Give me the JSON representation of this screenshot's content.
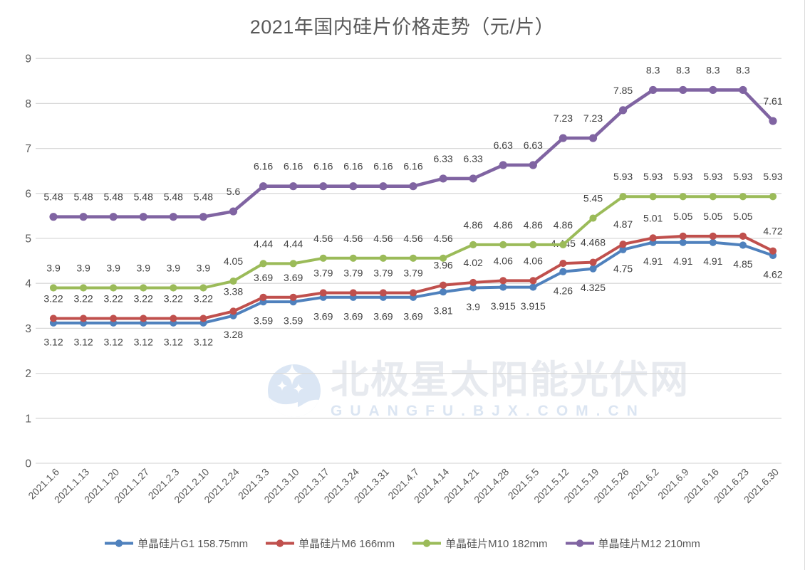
{
  "title": "2021年国内硅片价格走势（元/片）",
  "watermark": {
    "text": "北极星太阳能光伏网",
    "subtext": "GUANGFU.BJX.COM.CN",
    "logo": "star-crescent-logo",
    "main_color": "#e7eaef",
    "sub_color": "#dbe5f2",
    "logo_color": "#dbe6f4"
  },
  "axis_colors": {
    "tick_text": "#595959",
    "gridline": "#d9d9d9",
    "data_label": "#3f3f3f"
  },
  "chart_data": {
    "type": "line",
    "title": "2021年国内硅片价格走势（元/片）",
    "xlabel": "",
    "ylabel": "",
    "ylim": [
      0,
      9
    ],
    "ytick_step": 1,
    "grid": true,
    "legend_position": "bottom",
    "markers": "circle",
    "categories": [
      "2021.1.6",
      "2021.1.13",
      "2021.1.20",
      "2021.1.27",
      "2021.2.3",
      "2021.2.10",
      "2021.2.24",
      "2021.3.3",
      "2021.3.10",
      "2021.3.17",
      "2021.3.24",
      "2021.3.31",
      "2021.4.7",
      "2021.4.14",
      "2021.4.21",
      "2021.4.28",
      "2021.5.5",
      "2021.5.12",
      "2021.5.19",
      "2021.5.26",
      "2021.6.2",
      "2021.6.9",
      "2021.6.16",
      "2021.6.23",
      "2021.6.30"
    ],
    "series": [
      {
        "name": "单晶硅片G1 158.75mm",
        "color": "#4F81BD",
        "label_position": "below",
        "values": [
          3.12,
          3.12,
          3.12,
          3.12,
          3.12,
          3.12,
          3.28,
          3.59,
          3.59,
          3.69,
          3.69,
          3.69,
          3.69,
          3.81,
          3.9,
          3.915,
          3.915,
          4.26,
          4.325,
          4.75,
          4.91,
          4.91,
          4.91,
          4.85,
          4.62
        ]
      },
      {
        "name": "单晶硅片M6 166mm",
        "color": "#C0504D",
        "label_position": "above",
        "values": [
          3.22,
          3.22,
          3.22,
          3.22,
          3.22,
          3.22,
          3.38,
          3.69,
          3.69,
          3.79,
          3.79,
          3.79,
          3.79,
          3.96,
          4.02,
          4.06,
          4.06,
          4.445,
          4.468,
          4.87,
          5.01,
          5.05,
          5.05,
          5.05,
          4.72
        ]
      },
      {
        "name": "单晶硅片M10 182mm",
        "color": "#9BBB59",
        "label_position": "above",
        "values": [
          3.9,
          3.9,
          3.9,
          3.9,
          3.9,
          3.9,
          4.05,
          4.44,
          4.44,
          4.56,
          4.56,
          4.56,
          4.56,
          4.56,
          4.86,
          4.86,
          4.86,
          4.86,
          5.45,
          5.93,
          5.93,
          5.93,
          5.93,
          5.93,
          5.93
        ]
      },
      {
        "name": "单晶硅片M12 210mm",
        "color": "#8064A2",
        "label_position": "above",
        "values": [
          5.48,
          5.48,
          5.48,
          5.48,
          5.48,
          5.48,
          5.6,
          6.16,
          6.16,
          6.16,
          6.16,
          6.16,
          6.16,
          6.33,
          6.33,
          6.63,
          6.63,
          7.23,
          7.23,
          7.85,
          8.3,
          8.3,
          8.3,
          8.3,
          7.61
        ]
      }
    ]
  }
}
